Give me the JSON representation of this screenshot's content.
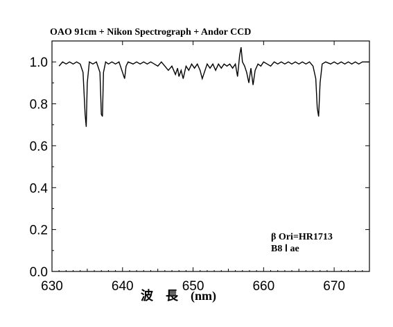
{
  "chart_data": {
    "type": "line",
    "title": "OAO 91cm + Nikon Spectrograph + Andor CCD",
    "xlabel": "波　長　(nm)",
    "ylabel": "",
    "xlim": [
      630,
      675
    ],
    "ylim": [
      0.0,
      1.1
    ],
    "x_ticks": [
      "630",
      "640",
      "650",
      "660",
      "670"
    ],
    "y_ticks": [
      "0.0",
      "0.2",
      "0.4",
      "0.6",
      "0.8",
      "1.0"
    ],
    "annotations": [
      "β Ori=HR1713",
      "B8 Ⅰ ae"
    ],
    "series": [
      {
        "x": [
          631.0,
          631.5,
          632.0,
          632.5,
          633.0,
          633.5,
          634.0,
          634.4,
          634.7,
          634.85,
          635.0,
          635.3,
          635.8,
          636.3,
          636.8,
          637.0,
          637.15,
          637.3,
          637.6,
          638.0,
          638.5,
          639.0,
          639.5,
          640.0,
          640.3,
          640.5,
          640.8,
          641.5,
          642.0,
          642.5,
          643.0,
          643.5,
          644.0,
          644.5,
          645.0,
          645.5,
          646.0,
          646.5,
          647.0,
          647.5,
          647.8,
          648.0,
          648.3,
          648.6,
          649.0,
          649.4,
          649.8,
          650.2,
          650.6,
          651.0,
          651.3,
          651.6,
          652.0,
          652.4,
          652.8,
          653.2,
          653.6,
          654.0,
          654.4,
          654.8,
          655.2,
          655.6,
          656.0,
          656.3,
          656.6,
          656.8,
          657.0,
          657.3,
          657.6,
          657.9,
          658.2,
          658.5,
          658.8,
          659.2,
          659.6,
          660.0,
          660.5,
          661.0,
          661.5,
          662.0,
          662.5,
          663.0,
          663.5,
          664.0,
          664.5,
          665.0,
          665.5,
          666.0,
          666.5,
          667.0,
          667.4,
          667.6,
          667.8,
          668.0,
          668.3,
          668.8,
          669.5,
          670.0,
          670.5,
          671.0,
          671.5,
          672.0,
          672.5,
          673.0,
          673.5,
          674.0,
          674.5,
          675.0
        ],
        "y": [
          0.98,
          1.0,
          0.99,
          1.0,
          0.99,
          1.0,
          0.99,
          0.95,
          0.75,
          0.69,
          0.9,
          1.0,
          0.99,
          1.0,
          0.95,
          0.75,
          0.74,
          0.95,
          1.0,
          0.99,
          1.0,
          0.99,
          1.0,
          0.95,
          0.92,
          0.98,
          1.0,
          0.99,
          1.0,
          0.99,
          1.0,
          0.99,
          1.0,
          0.99,
          0.98,
          1.0,
          0.98,
          0.96,
          0.98,
          0.94,
          0.97,
          0.93,
          0.96,
          0.92,
          0.98,
          0.96,
          0.99,
          0.97,
          0.99,
          0.96,
          0.92,
          0.95,
          0.99,
          0.97,
          0.99,
          0.96,
          0.99,
          0.97,
          0.99,
          0.98,
          0.99,
          0.97,
          0.99,
          0.93,
          1.03,
          1.07,
          1.0,
          0.98,
          0.95,
          0.9,
          0.97,
          0.89,
          0.96,
          0.99,
          0.98,
          1.0,
          0.99,
          0.98,
          1.0,
          0.99,
          1.0,
          0.99,
          1.0,
          0.99,
          1.0,
          0.99,
          1.0,
          0.99,
          1.0,
          0.98,
          0.92,
          0.78,
          0.74,
          0.9,
          0.99,
          1.0,
          0.99,
          1.0,
          0.99,
          1.0,
          0.99,
          1.0,
          0.99,
          1.0,
          0.99,
          1.0,
          1.0,
          1.0
        ]
      }
    ]
  }
}
